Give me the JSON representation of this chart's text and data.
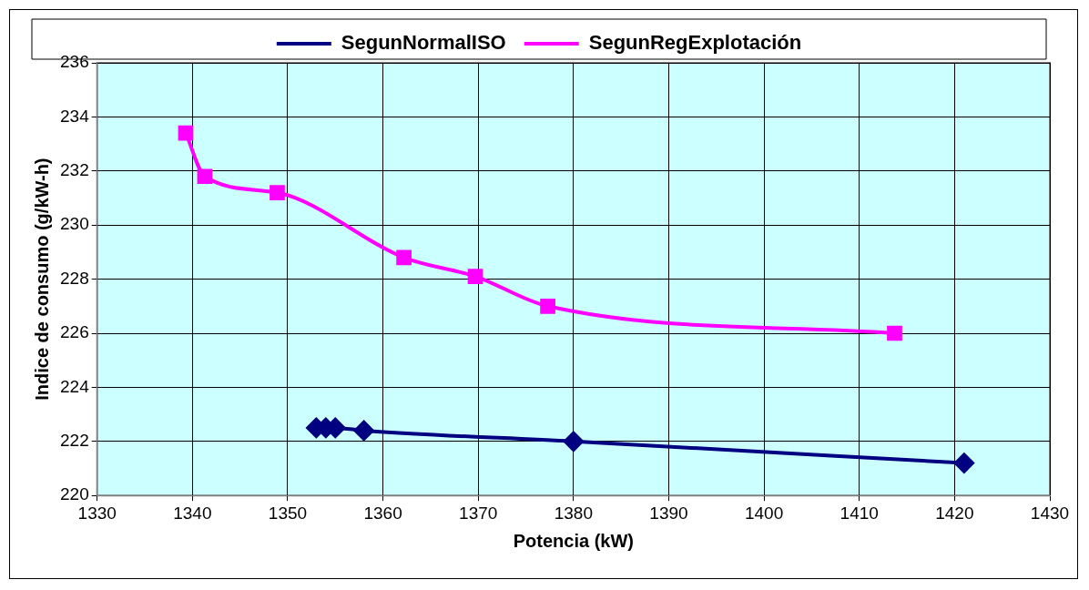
{
  "chart_data": {
    "type": "line",
    "xlabel": "Potencia (kW)",
    "ylabel": "Indice de consumo (g/kW-h)",
    "xlim": [
      1330,
      1430
    ],
    "xticks": [
      1330,
      1340,
      1350,
      1360,
      1370,
      1380,
      1390,
      1400,
      1410,
      1420,
      1430
    ],
    "ylim": [
      220,
      236
    ],
    "yticks": [
      220,
      222,
      224,
      226,
      228,
      230,
      232,
      234,
      236
    ],
    "grid": true,
    "legend": "top",
    "series": [
      {
        "name": "SegunNormalISO",
        "color": "#000080",
        "marker": "diamond",
        "x": [
          1353,
          1354,
          1355,
          1358,
          1380,
          1421
        ],
        "values": [
          222.5,
          222.5,
          222.5,
          222.4,
          222.0,
          221.2
        ]
      },
      {
        "name": "SegunRegExplotación",
        "color": "#ff00ff",
        "marker": "square",
        "x": [
          1339.3,
          1341.3,
          1348.9,
          1362.2,
          1369.7,
          1377.3,
          1413.7
        ],
        "values": [
          233.4,
          231.8,
          231.2,
          228.8,
          228.1,
          227.0,
          226.0
        ]
      }
    ]
  }
}
